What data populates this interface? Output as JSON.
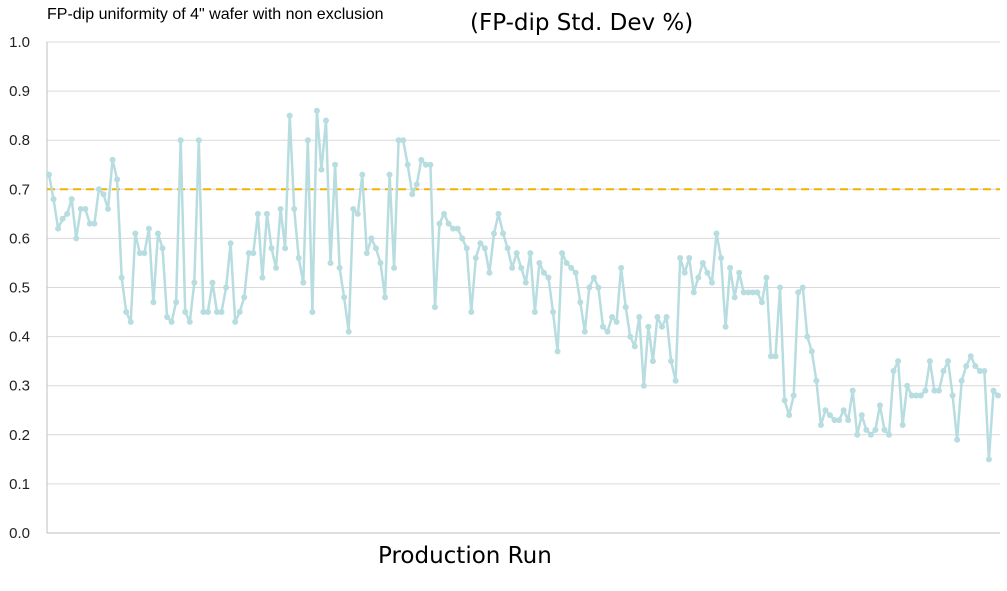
{
  "caption": "FP-dip uniformity of 4\" wafer with non exclusion",
  "chart_data": {
    "type": "line",
    "title": "(FP-dip Std. Dev %)",
    "xlabel": "Production Run",
    "ylabel": "",
    "ylim": [
      0,
      1.0
    ],
    "yticks": [
      "0.0",
      "0.1",
      "0.2",
      "0.3",
      "0.4",
      "0.5",
      "0.6",
      "0.7",
      "0.8",
      "0.9",
      "1.0"
    ],
    "grid": true,
    "threshold": 0.7,
    "series": [
      {
        "color": "#b7dde0",
        "values": [
          0.73,
          0.68,
          0.62,
          0.64,
          0.65,
          0.68,
          0.6,
          0.66,
          0.66,
          0.63,
          0.63,
          0.7,
          0.69,
          0.66,
          0.76,
          0.72,
          0.52,
          0.45,
          0.43,
          0.61,
          0.57,
          0.57,
          0.62,
          0.47,
          0.61,
          0.58,
          0.44,
          0.43,
          0.47,
          0.8,
          0.45,
          0.43,
          0.51,
          0.8,
          0.45,
          0.45,
          0.51,
          0.45,
          0.45,
          0.5,
          0.59,
          0.43,
          0.45,
          0.48,
          0.57,
          0.57,
          0.65,
          0.52,
          0.65,
          0.58,
          0.54,
          0.66,
          0.58,
          0.85,
          0.66,
          0.56,
          0.51,
          0.8,
          0.45,
          0.86,
          0.74,
          0.84,
          0.55,
          0.75,
          0.54,
          0.48,
          0.41,
          0.66,
          0.65,
          0.73,
          0.57,
          0.6,
          0.58,
          0.55,
          0.48,
          0.73,
          0.54,
          0.8,
          0.8,
          0.75,
          0.69,
          0.71,
          0.76,
          0.75,
          0.75,
          0.46,
          0.63,
          0.65,
          0.63,
          0.62,
          0.62,
          0.6,
          0.58,
          0.45,
          0.56,
          0.59,
          0.58,
          0.53,
          0.61,
          0.65,
          0.61,
          0.58,
          0.54,
          0.57,
          0.54,
          0.51,
          0.57,
          0.45,
          0.55,
          0.53,
          0.52,
          0.45,
          0.37,
          0.57,
          0.55,
          0.54,
          0.53,
          0.47,
          0.41,
          0.5,
          0.52,
          0.5,
          0.42,
          0.41,
          0.44,
          0.43,
          0.54,
          0.46,
          0.4,
          0.38,
          0.44,
          0.3,
          0.42,
          0.35,
          0.44,
          0.42,
          0.44,
          0.35,
          0.31,
          0.56,
          0.53,
          0.56,
          0.49,
          0.52,
          0.55,
          0.53,
          0.51,
          0.61,
          0.56,
          0.42,
          0.54,
          0.48,
          0.53,
          0.49,
          0.49,
          0.49,
          0.49,
          0.47,
          0.52,
          0.36,
          0.36,
          0.5,
          0.27,
          0.24,
          0.28,
          0.49,
          0.5,
          0.4,
          0.37,
          0.31,
          0.22,
          0.25,
          0.24,
          0.23,
          0.23,
          0.25,
          0.23,
          0.29,
          0.2,
          0.24,
          0.21,
          0.2,
          0.21,
          0.26,
          0.21,
          0.2,
          0.33,
          0.35,
          0.22,
          0.3,
          0.28,
          0.28,
          0.28,
          0.29,
          0.35,
          0.29,
          0.29,
          0.33,
          0.35,
          0.28,
          0.19,
          0.31,
          0.34,
          0.36,
          0.34,
          0.33,
          0.33,
          0.15,
          0.29,
          0.28
        ]
      }
    ]
  }
}
